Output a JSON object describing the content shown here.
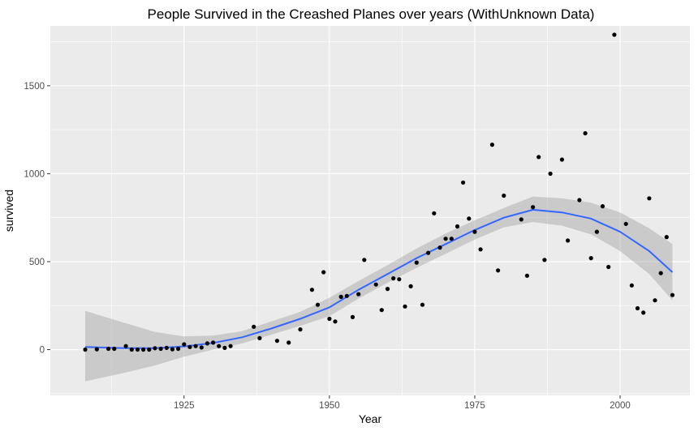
{
  "chart_data": {
    "type": "scatter",
    "title": "People Survived in the Creashed Planes over years (WithUnknown Data)",
    "xlabel": "Year",
    "ylabel": "survived",
    "xlim": [
      1902,
      2012
    ],
    "ylim": [
      -260,
      1840
    ],
    "x_ticks": [
      1925,
      1950,
      1975,
      2000
    ],
    "x_tick_labels": [
      "1925",
      "1950",
      "1975",
      "2000"
    ],
    "y_ticks": [
      0,
      500,
      1000,
      1500
    ],
    "y_tick_labels": [
      "0",
      "500",
      "1000",
      "1500"
    ],
    "grid": true,
    "legend": "none",
    "colors": {
      "panel_background": "#ebebeb",
      "grid_major": "#ffffff",
      "points": "#000000",
      "smooth_line": "#3366ff",
      "confidence_band": "#999999"
    },
    "series": [
      {
        "type": "points",
        "x": [
          1908,
          1910,
          1912,
          1913,
          1915,
          1916,
          1917,
          1918,
          1919,
          1920,
          1921,
          1922,
          1923,
          1924,
          1925,
          1926,
          1927,
          1928,
          1929,
          1930,
          1931,
          1932,
          1933,
          1937,
          1938,
          1941,
          1943,
          1945,
          1947,
          1948,
          1949,
          1950,
          1951,
          1952,
          1953,
          1954,
          1955,
          1956,
          1958,
          1959,
          1960,
          1961,
          1962,
          1963,
          1964,
          1965,
          1966,
          1967,
          1968,
          1969,
          1970,
          1971,
          1972,
          1973,
          1974,
          1975,
          1976,
          1978,
          1979,
          1980,
          1983,
          1984,
          1985,
          1986,
          1987,
          1988,
          1990,
          1991,
          1993,
          1994,
          1995,
          1996,
          1997,
          1998,
          1999,
          2001,
          2002,
          2003,
          2004,
          2005,
          2006,
          2007,
          2008,
          2009
        ],
        "y": [
          0,
          2,
          5,
          5,
          20,
          0,
          0,
          0,
          0,
          8,
          5,
          10,
          2,
          5,
          30,
          15,
          20,
          12,
          35,
          40,
          20,
          10,
          20,
          130,
          65,
          50,
          40,
          115,
          340,
          255,
          440,
          175,
          160,
          300,
          305,
          185,
          315,
          510,
          370,
          225,
          345,
          405,
          400,
          245,
          360,
          495,
          255,
          550,
          775,
          580,
          630,
          630,
          700,
          950,
          745,
          670,
          570,
          1165,
          450,
          875,
          740,
          420,
          810,
          1095,
          510,
          1000,
          1080,
          620,
          850,
          1230,
          520,
          670,
          815,
          470,
          1790,
          715,
          365,
          235,
          210,
          860,
          280,
          435,
          640,
          310
        ]
      },
      {
        "type": "smooth",
        "x": [
          1908,
          1915,
          1920,
          1925,
          1930,
          1935,
          1940,
          1945,
          1950,
          1955,
          1960,
          1965,
          1970,
          1975,
          1980,
          1985,
          1990,
          1995,
          2000,
          2005,
          2009
        ],
        "y": [
          15,
          8,
          8,
          18,
          38,
          70,
          120,
          175,
          240,
          340,
          430,
          520,
          600,
          680,
          750,
          795,
          780,
          745,
          670,
          560,
          440
        ],
        "ymin": [
          -180,
          -130,
          -90,
          -40,
          0,
          35,
          85,
          135,
          190,
          290,
          380,
          465,
          545,
          625,
          695,
          725,
          705,
          655,
          560,
          430,
          280
        ],
        "ymax": [
          220,
          150,
          100,
          75,
          80,
          105,
          160,
          215,
          295,
          390,
          480,
          575,
          660,
          735,
          805,
          870,
          860,
          835,
          780,
          690,
          600
        ]
      }
    ]
  }
}
